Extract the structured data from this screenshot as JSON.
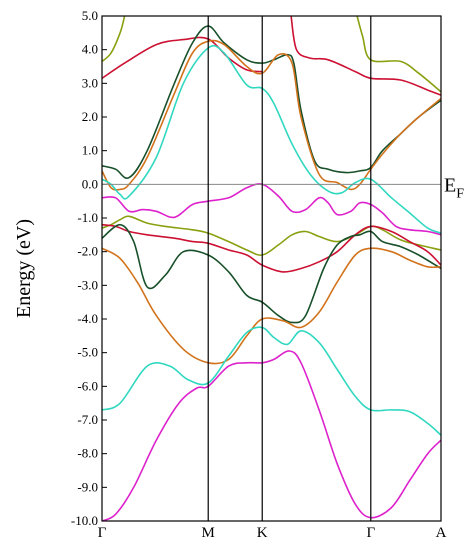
{
  "chart_data": {
    "type": "line",
    "ylabel": "Energy (eV)",
    "ylim": [
      -10.0,
      5.0
    ],
    "yticks": [
      "5.0",
      "4.0",
      "3.0",
      "2.0",
      "1.0",
      "0.0",
      "-1.0",
      "-2.0",
      "-3.0",
      "-4.0",
      "-5.0",
      "-6.0",
      "-7.0",
      "-8.0",
      "-9.0",
      "-10.0"
    ],
    "ytick_values": [
      5,
      4,
      3,
      2,
      1,
      0,
      -1,
      -2,
      -3,
      -4,
      -5,
      -6,
      -7,
      -8,
      -9,
      -10
    ],
    "xlim": [
      0,
      3.747
    ],
    "kpoints": [
      {
        "label": "Γ",
        "x": 0
      },
      {
        "label": "M",
        "x": 1.174
      },
      {
        "label": "K",
        "x": 1.771
      },
      {
        "label": "Γ",
        "x": 2.971
      },
      {
        "label": "A",
        "x": 3.747
      }
    ],
    "fermi_level": 0.0,
    "fermi_label": "E",
    "fermi_sub": "F",
    "colors": {
      "red": "#cc1133",
      "olive": "#8aa010",
      "darkgreen": "#18502a",
      "orange": "#d2731c",
      "cyan": "#30d8c0",
      "magenta": "#dd22cc",
      "axis": "#000000",
      "fermi": "#888888"
    },
    "series": [
      {
        "color": "red",
        "x": [
          0.0,
          0.25,
          0.6,
          0.9,
          1.17,
          1.4,
          1.6,
          1.77
        ],
        "y": [
          3.15,
          3.6,
          4.15,
          4.3,
          4.32,
          3.75,
          3.4,
          3.35
        ]
      },
      {
        "color": "red",
        "x": [
          2.09,
          2.15,
          2.3,
          2.5,
          2.8,
          2.97,
          3.3,
          3.6,
          3.747
        ],
        "y": [
          5.0,
          4.0,
          3.75,
          3.7,
          3.35,
          3.15,
          3.1,
          2.8,
          2.65
        ]
      },
      {
        "color": "olive",
        "x": [
          0.0,
          0.1,
          0.2,
          0.25
        ],
        "y": [
          3.65,
          3.9,
          4.5,
          5.0
        ]
      },
      {
        "color": "olive",
        "x": [
          2.82,
          2.88,
          2.97,
          3.3,
          3.5,
          3.747
        ],
        "y": [
          5.0,
          4.4,
          3.7,
          3.65,
          3.3,
          2.75
        ]
      },
      {
        "color": "darkgreen",
        "x": [
          0.0,
          0.15,
          0.3,
          0.5,
          0.8,
          1.0,
          1.174,
          1.35,
          1.6,
          1.771,
          1.9,
          2.05,
          2.12,
          2.2,
          2.35,
          2.5,
          2.7,
          2.85,
          2.971,
          3.1,
          3.3,
          3.5,
          3.747
        ],
        "y": [
          0.55,
          0.45,
          0.2,
          1.0,
          3.0,
          4.2,
          4.7,
          4.2,
          3.7,
          3.6,
          3.7,
          3.85,
          3.6,
          2.2,
          0.7,
          0.45,
          0.35,
          0.4,
          0.5,
          1.0,
          1.5,
          2.0,
          2.5
        ]
      },
      {
        "color": "orange",
        "x": [
          0.0,
          0.1,
          0.2,
          0.3,
          0.5,
          0.8,
          1.0,
          1.174,
          1.35,
          1.6,
          1.771,
          1.95,
          2.1,
          2.2,
          2.4,
          2.6,
          2.75,
          2.85,
          2.971,
          3.1,
          3.3,
          3.5,
          3.747
        ],
        "y": [
          0.4,
          -0.1,
          -0.15,
          0.0,
          0.8,
          2.7,
          3.9,
          4.25,
          4.15,
          3.5,
          3.3,
          3.85,
          3.6,
          2.0,
          0.3,
          0.05,
          -0.15,
          0.0,
          0.45,
          0.9,
          1.5,
          2.0,
          2.55
        ]
      },
      {
        "color": "cyan",
        "x": [
          0.0,
          0.1,
          0.2,
          0.3,
          0.6,
          0.9,
          1.174,
          1.35,
          1.6,
          1.771,
          1.9,
          2.1,
          2.3,
          2.5,
          2.65,
          2.8,
          2.971,
          3.2,
          3.4,
          3.6,
          3.747
        ],
        "y": [
          0.15,
          0.0,
          -0.3,
          -0.35,
          0.8,
          3.0,
          4.05,
          3.9,
          2.95,
          2.85,
          2.4,
          1.2,
          0.3,
          -0.2,
          -0.25,
          0.05,
          0.15,
          -0.4,
          -0.85,
          -1.3,
          -1.45
        ]
      },
      {
        "color": "magenta",
        "x": [
          0.0,
          0.15,
          0.3,
          0.45,
          0.6,
          0.8,
          1.0,
          1.174,
          1.4,
          1.6,
          1.771,
          1.95,
          2.1,
          2.25,
          2.4,
          2.5,
          2.6,
          2.75,
          2.85,
          2.971,
          3.1,
          3.25,
          3.4,
          3.6,
          3.747
        ],
        "y": [
          -0.4,
          -0.4,
          -0.8,
          -0.75,
          -0.8,
          -0.98,
          -0.6,
          -0.5,
          -0.4,
          -0.1,
          0.0,
          -0.35,
          -0.8,
          -0.75,
          -0.4,
          -0.55,
          -0.9,
          -0.8,
          -0.55,
          -0.6,
          -0.85,
          -1.25,
          -1.35,
          -1.4,
          -1.5
        ]
      },
      {
        "color": "olive",
        "x": [
          0.0,
          0.1,
          0.2,
          0.3,
          0.5,
          0.7,
          1.0,
          1.174,
          1.4,
          1.6,
          1.771,
          1.95,
          2.1,
          2.25,
          2.4,
          2.6,
          2.8,
          2.971,
          3.1,
          3.3,
          3.5,
          3.747
        ],
        "y": [
          -1.3,
          -1.2,
          -1.05,
          -0.95,
          -1.15,
          -1.25,
          -1.35,
          -1.45,
          -1.7,
          -1.95,
          -2.1,
          -1.8,
          -1.5,
          -1.4,
          -1.55,
          -1.7,
          -1.5,
          -1.25,
          -1.35,
          -1.65,
          -1.8,
          -1.95
        ]
      },
      {
        "color": "red",
        "x": [
          0.0,
          0.15,
          0.3,
          0.5,
          0.8,
          1.0,
          1.174,
          1.4,
          1.6,
          1.771,
          2.0,
          2.2,
          2.4,
          2.6,
          2.8,
          2.971,
          3.2,
          3.4,
          3.6,
          3.747
        ],
        "y": [
          -1.2,
          -1.25,
          -1.4,
          -1.5,
          -1.6,
          -1.7,
          -1.75,
          -1.95,
          -2.1,
          -2.4,
          -2.6,
          -2.5,
          -2.3,
          -2.0,
          -1.5,
          -1.25,
          -1.4,
          -1.7,
          -2.0,
          -2.4
        ]
      },
      {
        "color": "darkgreen",
        "x": [
          0.0,
          0.2,
          0.35,
          0.5,
          0.7,
          0.9,
          1.174,
          1.4,
          1.6,
          1.771,
          1.95,
          2.1,
          2.25,
          2.45,
          2.6,
          2.75,
          2.85,
          2.971,
          3.1,
          3.3,
          3.5,
          3.747
        ],
        "y": [
          -1.6,
          -1.2,
          -1.7,
          -3.05,
          -2.7,
          -2.0,
          -2.1,
          -2.6,
          -3.3,
          -3.5,
          -3.9,
          -4.1,
          -3.9,
          -2.5,
          -1.8,
          -1.55,
          -1.5,
          -1.4,
          -1.7,
          -1.85,
          -2.1,
          -2.5
        ]
      },
      {
        "color": "orange",
        "x": [
          0.0,
          0.2,
          0.4,
          0.6,
          0.9,
          1.174,
          1.4,
          1.6,
          1.771,
          2.0,
          2.2,
          2.4,
          2.6,
          2.8,
          2.971,
          3.2,
          3.4,
          3.6,
          3.747
        ],
        "y": [
          -1.9,
          -2.2,
          -2.95,
          -3.9,
          -4.9,
          -5.3,
          -5.2,
          -4.5,
          -4.0,
          -4.05,
          -4.25,
          -3.8,
          -2.9,
          -2.1,
          -1.9,
          -2.0,
          -2.25,
          -2.45,
          -2.45
        ]
      },
      {
        "color": "cyan",
        "x": [
          0.0,
          0.2,
          0.5,
          0.75,
          0.95,
          1.174,
          1.4,
          1.6,
          1.771,
          1.9,
          2.05,
          2.2,
          2.4,
          2.6,
          2.8,
          2.971,
          3.2,
          3.4,
          3.6,
          3.747
        ],
        "y": [
          -6.7,
          -6.5,
          -5.4,
          -5.4,
          -5.8,
          -5.9,
          -5.1,
          -4.4,
          -4.25,
          -4.55,
          -4.75,
          -4.35,
          -4.7,
          -5.5,
          -6.3,
          -6.7,
          -6.7,
          -6.75,
          -7.1,
          -7.45
        ]
      },
      {
        "color": "magenta",
        "x": [
          0.0,
          0.15,
          0.35,
          0.6,
          0.85,
          1.05,
          1.174,
          1.4,
          1.6,
          1.771,
          1.9,
          2.07,
          2.2,
          2.4,
          2.6,
          2.8,
          2.971,
          3.2,
          3.4,
          3.6,
          3.747
        ],
        "y": [
          -10.0,
          -9.8,
          -9.0,
          -7.6,
          -6.5,
          -6.05,
          -6.0,
          -5.4,
          -5.3,
          -5.3,
          -5.2,
          -4.95,
          -5.3,
          -6.7,
          -8.3,
          -9.5,
          -9.9,
          -9.6,
          -8.8,
          -8.0,
          -7.6
        ]
      }
    ]
  }
}
